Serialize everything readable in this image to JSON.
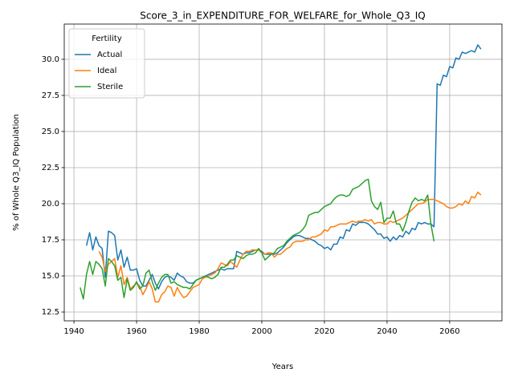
{
  "chart_data": {
    "type": "line",
    "title": "Score_3_in_EXPENDITURE_FOR_WELFARE_for_Whole_Q3_IQ",
    "x_label": "Years",
    "y_label": "% of Whole Q3_IQ Population",
    "legend_title": "Fertility",
    "legend_position": "upper left",
    "grid": true,
    "xlim": [
      1936.9,
      2076.7
    ],
    "ylim": [
      11.89,
      32.44
    ],
    "xticks": [
      1940,
      1960,
      1980,
      2000,
      2020,
      2040,
      2060
    ],
    "yticks": [
      12.5,
      {
        "value": 15,
        "label": "15.0"
      },
      17.5,
      {
        "value": 20,
        "label": "20.0"
      },
      22.5,
      {
        "value": 25,
        "label": "25.0"
      },
      27.5,
      {
        "value": 30,
        "label": "30.0"
      }
    ],
    "x": [
      1942,
      1943,
      1944,
      1945,
      1946,
      1947,
      1948,
      1949,
      1950,
      1951,
      1952,
      1953,
      1954,
      1955,
      1956,
      1957,
      1958,
      1959,
      1960,
      1961,
      1962,
      1963,
      1964,
      1965,
      1966,
      1967,
      1968,
      1969,
      1970,
      1971,
      1972,
      1973,
      1974,
      1975,
      1976,
      1977,
      1978,
      1979,
      1980,
      1981,
      1982,
      1983,
      1984,
      1985,
      1986,
      1987,
      1988,
      1989,
      1990,
      1991,
      1992,
      1993,
      1994,
      1995,
      1996,
      1997,
      1998,
      1999,
      2000,
      2001,
      2002,
      2003,
      2004,
      2005,
      2006,
      2007,
      2008,
      2009,
      2010,
      2011,
      2012,
      2013,
      2014,
      2015,
      2016,
      2017,
      2018,
      2019,
      2020,
      2021,
      2022,
      2023,
      2024,
      2025,
      2026,
      2027,
      2028,
      2029,
      2030,
      2031,
      2032,
      2033,
      2034,
      2035,
      2036,
      2037,
      2038,
      2039,
      2040,
      2041,
      2042,
      2043,
      2044,
      2045,
      2046,
      2047,
      2048,
      2049,
      2050,
      2051,
      2052,
      2053,
      2054,
      2055,
      2056,
      2057,
      2058,
      2059,
      2060,
      2061,
      2062,
      2063,
      2064,
      2065,
      2066,
      2067,
      2068,
      2069,
      2070
    ],
    "series": [
      {
        "name": "Actual",
        "color": "#1f77b4",
        "values": [
          null,
          null,
          17.1,
          18.0,
          16.8,
          17.7,
          17.1,
          16.9,
          14.9,
          18.1,
          18.0,
          17.8,
          16.1,
          16.8,
          15.6,
          16.3,
          15.4,
          15.4,
          15.5,
          14.7,
          14.3,
          14.3,
          14.7,
          15.1,
          14.5,
          14.1,
          14.6,
          14.9,
          15.0,
          14.9,
          14.7,
          15.2,
          15.0,
          14.9,
          14.6,
          14.5,
          14.5,
          14.7,
          14.8,
          14.9,
          15.0,
          15.1,
          15.2,
          15.3,
          15.4,
          15.5,
          15.4,
          15.5,
          15.5,
          15.5,
          16.7,
          16.6,
          16.5,
          16.6,
          16.6,
          16.7,
          16.8,
          16.8,
          16.7,
          16.5,
          16.5,
          16.5,
          16.5,
          16.6,
          16.8,
          17.0,
          17.3,
          17.5,
          17.7,
          17.8,
          17.8,
          17.7,
          17.6,
          17.6,
          17.5,
          17.4,
          17.2,
          17.1,
          16.9,
          17.0,
          16.8,
          17.2,
          17.2,
          17.7,
          17.6,
          18.2,
          18.1,
          18.6,
          18.5,
          18.7,
          18.7,
          18.7,
          18.6,
          18.4,
          18.2,
          17.9,
          17.9,
          17.6,
          17.7,
          17.4,
          17.7,
          17.5,
          17.8,
          17.7,
          18.1,
          17.9,
          18.3,
          18.2,
          18.7,
          18.6,
          18.7,
          18.6,
          18.6,
          18.4,
          28.3,
          28.2,
          28.9,
          28.8,
          29.5,
          29.4,
          30.1,
          30.0,
          30.5,
          30.4,
          30.5,
          30.6,
          30.5,
          31.0,
          30.7
        ]
      },
      {
        "name": "Ideal",
        "color": "#ff7f0e",
        "values": [
          null,
          null,
          null,
          null,
          null,
          null,
          16.7,
          16.3,
          15.3,
          15.8,
          16.0,
          16.2,
          14.9,
          15.7,
          14.4,
          14.9,
          14.1,
          14.3,
          14.5,
          14.3,
          13.7,
          14.1,
          14.6,
          14.1,
          13.2,
          13.2,
          13.7,
          13.9,
          14.3,
          14.2,
          13.6,
          14.2,
          13.8,
          13.5,
          13.6,
          13.9,
          14.2,
          14.3,
          14.4,
          14.8,
          14.9,
          15.0,
          15.1,
          15.2,
          15.5,
          15.9,
          15.8,
          15.7,
          16.0,
          15.8,
          15.6,
          16.1,
          16.5,
          16.7,
          16.7,
          16.8,
          16.8,
          16.8,
          16.6,
          16.5,
          16.6,
          16.6,
          16.3,
          16.5,
          16.5,
          16.7,
          16.9,
          17.0,
          17.3,
          17.4,
          17.4,
          17.4,
          17.5,
          17.5,
          17.7,
          17.7,
          17.8,
          17.9,
          18.2,
          18.1,
          18.4,
          18.4,
          18.5,
          18.6,
          18.6,
          18.6,
          18.7,
          18.8,
          18.7,
          18.8,
          18.8,
          18.9,
          18.8,
          18.9,
          18.6,
          18.7,
          18.7,
          18.6,
          18.6,
          18.8,
          18.7,
          18.8,
          18.9,
          19.0,
          19.2,
          19.4,
          19.6,
          19.8,
          20.0,
          20.0,
          20.1,
          20.3,
          20.3,
          20.3,
          20.2,
          20.1,
          20.0,
          19.8,
          19.7,
          19.7,
          19.8,
          20.0,
          19.9,
          20.2,
          20.0,
          20.5,
          20.4,
          20.8,
          20.6
        ]
      },
      {
        "name": "Sterile",
        "color": "#2ca02c",
        "values": [
          14.2,
          13.4,
          15.1,
          16.0,
          15.1,
          16.0,
          15.8,
          15.5,
          14.3,
          16.2,
          16.0,
          15.7,
          14.7,
          14.9,
          13.5,
          14.8,
          14.0,
          14.2,
          14.6,
          14.1,
          14.3,
          15.2,
          15.4,
          14.6,
          14.0,
          14.5,
          14.9,
          15.1,
          15.1,
          14.5,
          14.6,
          14.4,
          14.3,
          14.2,
          14.2,
          14.1,
          14.4,
          14.7,
          14.8,
          14.9,
          15.0,
          14.9,
          14.8,
          14.9,
          15.1,
          15.6,
          15.6,
          15.8,
          16.1,
          16.1,
          16.4,
          16.3,
          16.2,
          16.4,
          16.5,
          16.5,
          16.6,
          16.9,
          16.6,
          16.1,
          16.3,
          16.5,
          16.6,
          16.9,
          17.0,
          17.1,
          17.4,
          17.6,
          17.8,
          17.9,
          18.0,
          18.2,
          18.5,
          19.2,
          19.3,
          19.4,
          19.4,
          19.6,
          19.8,
          19.9,
          20.0,
          20.3,
          20.5,
          20.6,
          20.6,
          20.5,
          20.6,
          21.0,
          21.1,
          21.2,
          21.4,
          21.6,
          21.7,
          20.2,
          19.8,
          19.6,
          20.1,
          18.7,
          19.0,
          19.0,
          19.5,
          18.6,
          18.6,
          18.1,
          18.7,
          19.5,
          20.1,
          20.4,
          20.2,
          20.3,
          20.2,
          20.6,
          18.6,
          17.4,
          null,
          null,
          null,
          null,
          null,
          null,
          null,
          null,
          null,
          null,
          null,
          null,
          null,
          null,
          null
        ]
      }
    ]
  }
}
